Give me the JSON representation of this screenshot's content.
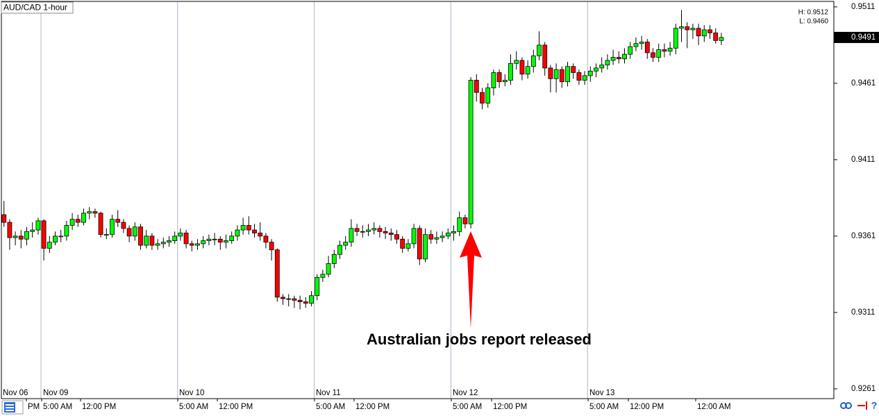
{
  "chart_data": {
    "type": "candlestick",
    "title": "AUD/CAD 1-hour",
    "high_low": [
      "H: 0.9512",
      "L: 0.9460"
    ],
    "last_price": 0.9491,
    "annotation": "Australian jobs report released",
    "up_color": "#00ff00",
    "down_color": "#ff0000",
    "ylim": [
      0.92546,
      0.95146
    ],
    "yticks": [
      0.9261,
      0.9311,
      0.9361,
      0.9411,
      0.9461,
      0.9511
    ],
    "date_labels": [
      "Nov 06",
      "Nov 09",
      "Nov 10",
      "Nov 11",
      "Nov 12",
      "Nov 13"
    ],
    "time_labels": [
      "PM",
      "5:00 AM",
      "12:00 PM",
      "5:00 AM",
      "12:00 PM",
      "5:00 AM",
      "12:00 PM",
      "5:00 AM",
      "12:00 PM",
      "5:00 AM",
      "12:00 PM",
      "12:00 AM"
    ],
    "ohlc": [
      [
        0.9375,
        0.9384,
        0.9367,
        0.937
      ],
      [
        0.937,
        0.9372,
        0.9352,
        0.936
      ],
      [
        0.936,
        0.9364,
        0.9355,
        0.9361
      ],
      [
        0.9361,
        0.9365,
        0.9353,
        0.9359
      ],
      [
        0.9359,
        0.9367,
        0.9355,
        0.9364
      ],
      [
        0.9364,
        0.937,
        0.936,
        0.9365
      ],
      [
        0.9365,
        0.9373,
        0.9362,
        0.9371
      ],
      [
        0.9371,
        0.9372,
        0.9345,
        0.9353
      ],
      [
        0.9353,
        0.9361,
        0.935,
        0.9357
      ],
      [
        0.9357,
        0.9364,
        0.9355,
        0.9361
      ],
      [
        0.9361,
        0.9365,
        0.9357,
        0.9361
      ],
      [
        0.9361,
        0.9371,
        0.9358,
        0.9368
      ],
      [
        0.9368,
        0.9376,
        0.9365,
        0.9372
      ],
      [
        0.9372,
        0.9375,
        0.9367,
        0.937
      ],
      [
        0.937,
        0.9379,
        0.9368,
        0.9376
      ],
      [
        0.9376,
        0.938,
        0.9372,
        0.9377
      ],
      [
        0.9377,
        0.9379,
        0.9373,
        0.9376
      ],
      [
        0.9376,
        0.9377,
        0.936,
        0.9362
      ],
      [
        0.9362,
        0.9366,
        0.9359,
        0.9362
      ],
      [
        0.9362,
        0.9375,
        0.936,
        0.9372
      ],
      [
        0.9372,
        0.9378,
        0.9367,
        0.937
      ],
      [
        0.937,
        0.9372,
        0.9363,
        0.9366
      ],
      [
        0.9366,
        0.9368,
        0.9357,
        0.9361
      ],
      [
        0.9361,
        0.937,
        0.9358,
        0.9367
      ],
      [
        0.9367,
        0.9369,
        0.9352,
        0.9355
      ],
      [
        0.9355,
        0.9365,
        0.9353,
        0.9361
      ],
      [
        0.9361,
        0.9363,
        0.9352,
        0.9355
      ],
      [
        0.9355,
        0.9359,
        0.9352,
        0.9356
      ],
      [
        0.9356,
        0.936,
        0.9353,
        0.9357
      ],
      [
        0.9357,
        0.9361,
        0.9354,
        0.9358
      ],
      [
        0.9358,
        0.9364,
        0.9356,
        0.9361
      ],
      [
        0.9361,
        0.9366,
        0.9358,
        0.9363
      ],
      [
        0.9363,
        0.9365,
        0.9353,
        0.9356
      ],
      [
        0.9356,
        0.9358,
        0.9351,
        0.9355
      ],
      [
        0.9355,
        0.9359,
        0.9352,
        0.9356
      ],
      [
        0.9356,
        0.9361,
        0.9353,
        0.9358
      ],
      [
        0.9358,
        0.9362,
        0.9355,
        0.9359
      ],
      [
        0.9359,
        0.9363,
        0.9355,
        0.9359
      ],
      [
        0.9359,
        0.9361,
        0.9352,
        0.9357
      ],
      [
        0.9357,
        0.9362,
        0.9353,
        0.9358
      ],
      [
        0.9358,
        0.9364,
        0.9356,
        0.9361
      ],
      [
        0.9361,
        0.9368,
        0.9358,
        0.9365
      ],
      [
        0.9365,
        0.9373,
        0.9362,
        0.9368
      ],
      [
        0.9368,
        0.9374,
        0.9362,
        0.9365
      ],
      [
        0.9365,
        0.9369,
        0.936,
        0.9363
      ],
      [
        0.9363,
        0.937,
        0.9358,
        0.9361
      ],
      [
        0.9361,
        0.9363,
        0.9353,
        0.9357
      ],
      [
        0.9357,
        0.9359,
        0.9345,
        0.9352
      ],
      [
        0.9352,
        0.9353,
        0.9318,
        0.9321
      ],
      [
        0.9321,
        0.9323,
        0.9316,
        0.932
      ],
      [
        0.932,
        0.9323,
        0.9315,
        0.932
      ],
      [
        0.932,
        0.9322,
        0.9314,
        0.9319
      ],
      [
        0.9319,
        0.9322,
        0.9313,
        0.9318
      ],
      [
        0.9318,
        0.9321,
        0.9314,
        0.9317
      ],
      [
        0.9317,
        0.9325,
        0.9315,
        0.9322
      ],
      [
        0.9322,
        0.9336,
        0.9319,
        0.9334
      ],
      [
        0.9334,
        0.9339,
        0.9331,
        0.9336
      ],
      [
        0.9336,
        0.9348,
        0.9334,
        0.9343
      ],
      [
        0.9343,
        0.9352,
        0.934,
        0.9349
      ],
      [
        0.9349,
        0.9358,
        0.9346,
        0.9355
      ],
      [
        0.9355,
        0.9361,
        0.9352,
        0.9357
      ],
      [
        0.9357,
        0.9372,
        0.9354,
        0.9366
      ],
      [
        0.9366,
        0.9369,
        0.9361,
        0.9364
      ],
      [
        0.9364,
        0.9368,
        0.936,
        0.9364
      ],
      [
        0.9364,
        0.9369,
        0.9361,
        0.9365
      ],
      [
        0.9365,
        0.937,
        0.9362,
        0.9366
      ],
      [
        0.9366,
        0.9368,
        0.936,
        0.9364
      ],
      [
        0.9364,
        0.9367,
        0.9359,
        0.9363
      ],
      [
        0.9363,
        0.9366,
        0.9358,
        0.9362
      ],
      [
        0.9362,
        0.9365,
        0.9356,
        0.9359
      ],
      [
        0.9359,
        0.9361,
        0.935,
        0.9353
      ],
      [
        0.9353,
        0.9359,
        0.9351,
        0.9356
      ],
      [
        0.9356,
        0.9369,
        0.9353,
        0.9366
      ],
      [
        0.9366,
        0.9368,
        0.9342,
        0.9346
      ],
      [
        0.9346,
        0.9366,
        0.9344,
        0.9362
      ],
      [
        0.9362,
        0.9365,
        0.9356,
        0.9359
      ],
      [
        0.9359,
        0.9364,
        0.9356,
        0.936
      ],
      [
        0.936,
        0.9364,
        0.9357,
        0.9361
      ],
      [
        0.9361,
        0.9366,
        0.9359,
        0.9363
      ],
      [
        0.9363,
        0.9368,
        0.9358,
        0.9364
      ],
      [
        0.9364,
        0.9377,
        0.9361,
        0.9373
      ],
      [
        0.9373,
        0.9375,
        0.9366,
        0.9369
      ],
      [
        0.9369,
        0.9465,
        0.9366,
        0.9463
      ],
      [
        0.9463,
        0.9467,
        0.9449,
        0.9455
      ],
      [
        0.9455,
        0.9458,
        0.9444,
        0.9448
      ],
      [
        0.9448,
        0.9461,
        0.9445,
        0.9458
      ],
      [
        0.9458,
        0.947,
        0.9453,
        0.9468
      ],
      [
        0.9468,
        0.947,
        0.9458,
        0.9462
      ],
      [
        0.9462,
        0.9467,
        0.9459,
        0.9463
      ],
      [
        0.9463,
        0.948,
        0.946,
        0.9474
      ],
      [
        0.9474,
        0.9482,
        0.947,
        0.9476
      ],
      [
        0.9476,
        0.9478,
        0.9463,
        0.9467
      ],
      [
        0.9467,
        0.9476,
        0.9464,
        0.9472
      ],
      [
        0.9472,
        0.9483,
        0.9468,
        0.9479
      ],
      [
        0.9479,
        0.9495,
        0.9476,
        0.9486
      ],
      [
        0.9486,
        0.9488,
        0.9466,
        0.9471
      ],
      [
        0.9471,
        0.9473,
        0.9455,
        0.9464
      ],
      [
        0.9464,
        0.9474,
        0.9455,
        0.947
      ],
      [
        0.947,
        0.9472,
        0.9458,
        0.9462
      ],
      [
        0.9462,
        0.9475,
        0.9459,
        0.9472
      ],
      [
        0.9472,
        0.9474,
        0.9464,
        0.9468
      ],
      [
        0.9468,
        0.947,
        0.946,
        0.9463
      ],
      [
        0.9463,
        0.9469,
        0.946,
        0.9466
      ],
      [
        0.9466,
        0.9472,
        0.9462,
        0.9469
      ],
      [
        0.9469,
        0.9474,
        0.9465,
        0.9471
      ],
      [
        0.9471,
        0.9478,
        0.9468,
        0.9473
      ],
      [
        0.9473,
        0.948,
        0.947,
        0.9476
      ],
      [
        0.9476,
        0.9483,
        0.9473,
        0.9478
      ],
      [
        0.9478,
        0.9482,
        0.9474,
        0.9477
      ],
      [
        0.9477,
        0.9484,
        0.9474,
        0.948
      ],
      [
        0.948,
        0.9488,
        0.9477,
        0.9485
      ],
      [
        0.9485,
        0.9491,
        0.9482,
        0.9487
      ],
      [
        0.9487,
        0.9492,
        0.9483,
        0.9488
      ],
      [
        0.9488,
        0.949,
        0.9477,
        0.9481
      ],
      [
        0.9481,
        0.9484,
        0.9475,
        0.9478
      ],
      [
        0.9478,
        0.9487,
        0.9475,
        0.9483
      ],
      [
        0.9483,
        0.9487,
        0.9478,
        0.9482
      ],
      [
        0.9482,
        0.9488,
        0.9479,
        0.9484
      ],
      [
        0.9484,
        0.95,
        0.948,
        0.9497
      ],
      [
        0.9497,
        0.9509,
        0.9488,
        0.9498
      ],
      [
        0.9498,
        0.9501,
        0.9484,
        0.9496
      ],
      [
        0.9496,
        0.95,
        0.949,
        0.9497
      ],
      [
        0.9497,
        0.95,
        0.9486,
        0.9492
      ],
      [
        0.9492,
        0.9499,
        0.9488,
        0.9496
      ],
      [
        0.9496,
        0.9499,
        0.949,
        0.9494
      ],
      [
        0.9494,
        0.9497,
        0.9487,
        0.9489
      ],
      [
        0.9489,
        0.9494,
        0.9486,
        0.9491
      ]
    ]
  }
}
